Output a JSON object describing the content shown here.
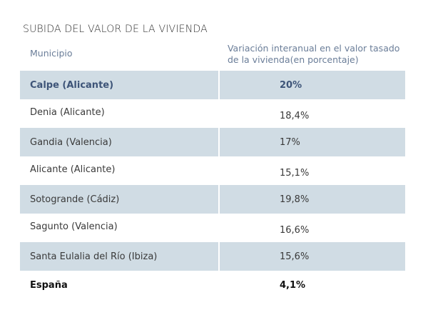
{
  "title": "SUBIDA DEL VALOR DE LA VIVIENDA",
  "table": {
    "headers": [
      "Municipio",
      "Variación interanual en el valor tasado de la vivienda(en porcentaje)"
    ],
    "shade_color": "#d0dce4",
    "rows": [
      {
        "municipio": "Calpe (Alicante)",
        "valor": "20%"
      },
      {
        "municipio": "Denia (Alicante)",
        "valor": "18,4%"
      },
      {
        "municipio": "Gandia (Valencia)",
        "valor": "17%"
      },
      {
        "municipio": "Alicante (Alicante)",
        "valor": "15,1%"
      },
      {
        "municipio": "Sotogrande (Cádiz)",
        "valor": "19,8%"
      },
      {
        "municipio": "Sagunto (Valencia)",
        "valor": "16,6%"
      },
      {
        "municipio": "Santa Eulalia del Río (Ibiza)",
        "valor": "15,6%"
      },
      {
        "municipio": "España",
        "valor": "4,1%"
      }
    ]
  }
}
